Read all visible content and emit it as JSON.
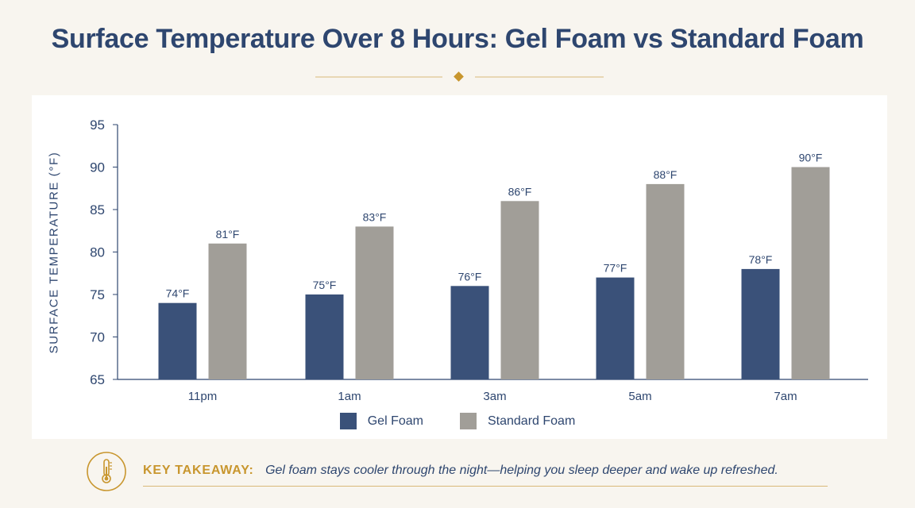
{
  "chart_data": {
    "type": "bar",
    "title": "Surface Temperature Over 8 Hours: Gel Foam vs Standard Foam",
    "xlabel": "",
    "ylabel": "SURFACE TEMPERATURE (°F)",
    "ylim": [
      65,
      95
    ],
    "yticks": [
      65,
      70,
      75,
      80,
      85,
      90,
      95
    ],
    "categories": [
      "11pm",
      "1am",
      "3am",
      "5am",
      "7am"
    ],
    "series": [
      {
        "name": "Gel Foam",
        "color": "#3a5179",
        "values": [
          74,
          75,
          76,
          77,
          78
        ],
        "labels": [
          "74°F",
          "75°F",
          "76°F",
          "77°F",
          "78°F"
        ]
      },
      {
        "name": "Standard Foam",
        "color": "#a19e98",
        "values": [
          81,
          83,
          86,
          88,
          90
        ],
        "labels": [
          "81°F",
          "83°F",
          "86°F",
          "88°F",
          "90°F"
        ]
      }
    ],
    "grid": false,
    "legend": "bottom-center"
  },
  "takeaway": {
    "label": "KEY TAKEAWAY:",
    "text": "Gel foam stays cooler through the night—helping you sleep deeper and wake up refreshed.",
    "icon": "thermometer-icon"
  },
  "colors": {
    "title": "#2e466f",
    "accent": "#c8962e",
    "background": "#f8f5ef"
  }
}
